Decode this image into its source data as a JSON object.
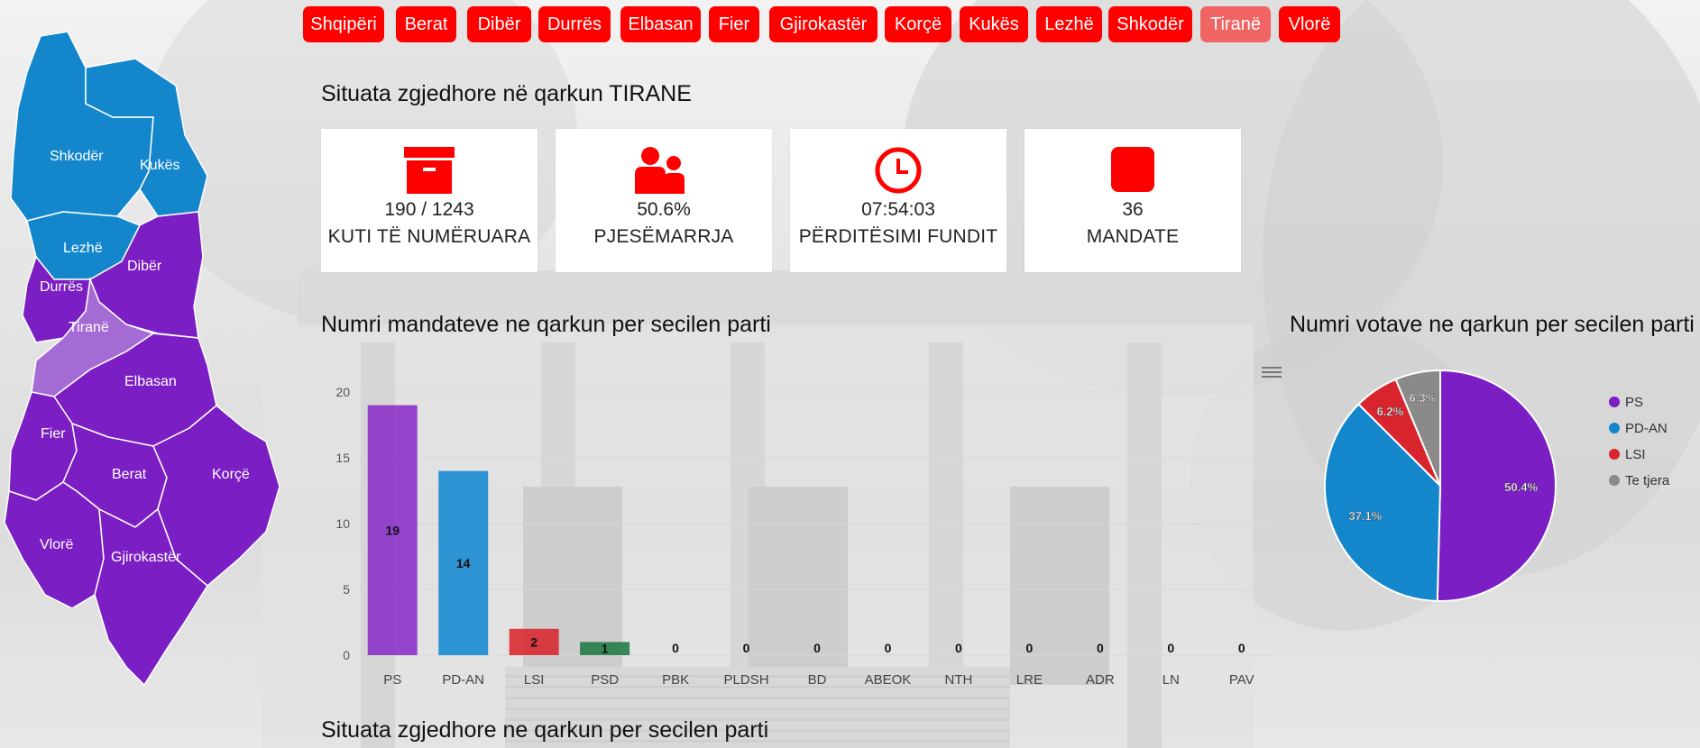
{
  "nav": {
    "items": [
      {
        "label": "Shqipëri"
      },
      {
        "label": "Berat"
      },
      {
        "label": "Dibër"
      },
      {
        "label": "Durrës"
      },
      {
        "label": "Elbasan"
      },
      {
        "label": "Fier"
      },
      {
        "label": "Gjirokastër"
      },
      {
        "label": "Korçë"
      },
      {
        "label": "Kukës"
      },
      {
        "label": "Lezhë"
      },
      {
        "label": "Shkodër"
      },
      {
        "label": "Tiranë"
      },
      {
        "label": "Vlorë"
      }
    ],
    "active": "Tiranë"
  },
  "header": {
    "title": "Situata zgjedhore në qarkun TIRANE"
  },
  "cards": [
    {
      "icon": "ballot-box-icon",
      "value": "190 / 1243",
      "label": "KUTI TË NUMËRUARA"
    },
    {
      "icon": "people-icon",
      "value": "50.6%",
      "label": "PJESËMARRJA"
    },
    {
      "icon": "clock-icon",
      "value": "07:54:03",
      "label": "PËRDITËSIMI FUNDIT"
    },
    {
      "icon": "seat-icon",
      "value": "36",
      "label": "MANDATE"
    }
  ],
  "map": {
    "regions": [
      {
        "name": "Shkodër",
        "color": "#1487cc"
      },
      {
        "name": "Kukës",
        "color": "#1487cc"
      },
      {
        "name": "Lezhë",
        "color": "#1487cc"
      },
      {
        "name": "Dibër",
        "color": "#7b1fc4"
      },
      {
        "name": "Durrës",
        "color": "#7b1fc4"
      },
      {
        "name": "Tiranë",
        "color": "#a56bd4"
      },
      {
        "name": "Elbasan",
        "color": "#7b1fc4"
      },
      {
        "name": "Fier",
        "color": "#7b1fc4"
      },
      {
        "name": "Berat",
        "color": "#7b1fc4"
      },
      {
        "name": "Korçë",
        "color": "#7b1fc4"
      },
      {
        "name": "Vlorë",
        "color": "#7b1fc4"
      },
      {
        "name": "Gjirokastër",
        "color": "#7b1fc4"
      }
    ]
  },
  "bottom": {
    "title": "Situata zgjedhore ne qarkun per secilen parti"
  },
  "chart_data": [
    {
      "type": "bar",
      "title": "Numri mandateve ne qarkun per secilen parti",
      "categories": [
        "PS",
        "PD-AN",
        "LSI",
        "PSD",
        "PBK",
        "PLDSH",
        "BD",
        "ABEOK",
        "NTH",
        "LRE",
        "ADR",
        "LN",
        "PAV"
      ],
      "values": [
        19,
        14,
        2,
        1,
        0,
        0,
        0,
        0,
        0,
        0,
        0,
        0,
        0
      ],
      "colors": [
        "#8a2fc8",
        "#1488d0",
        "#d8252d",
        "#1f7a45",
        "#888888",
        "#888888",
        "#888888",
        "#888888",
        "#888888",
        "#888888",
        "#888888",
        "#888888",
        "#888888"
      ],
      "ylim": [
        0,
        20
      ],
      "yticks": [
        0,
        5,
        10,
        15,
        20
      ],
      "grid": true,
      "data_labels": true
    },
    {
      "type": "pie",
      "title": "Numri votave ne qarkun per secilen parti",
      "slices": [
        {
          "name": "PS",
          "value": 50.4,
          "label": "50.4%",
          "color": "#7b1fc4"
        },
        {
          "name": "PD-AN",
          "value": 37.1,
          "label": "37.1%",
          "color": "#1487cc"
        },
        {
          "name": "LSI",
          "value": 6.2,
          "label": "6.2%",
          "color": "#d8252d"
        },
        {
          "name": "Te tjera",
          "value": 6.3,
          "label": "6.3%",
          "color": "#8a8a8a"
        }
      ],
      "legend": "right"
    }
  ]
}
